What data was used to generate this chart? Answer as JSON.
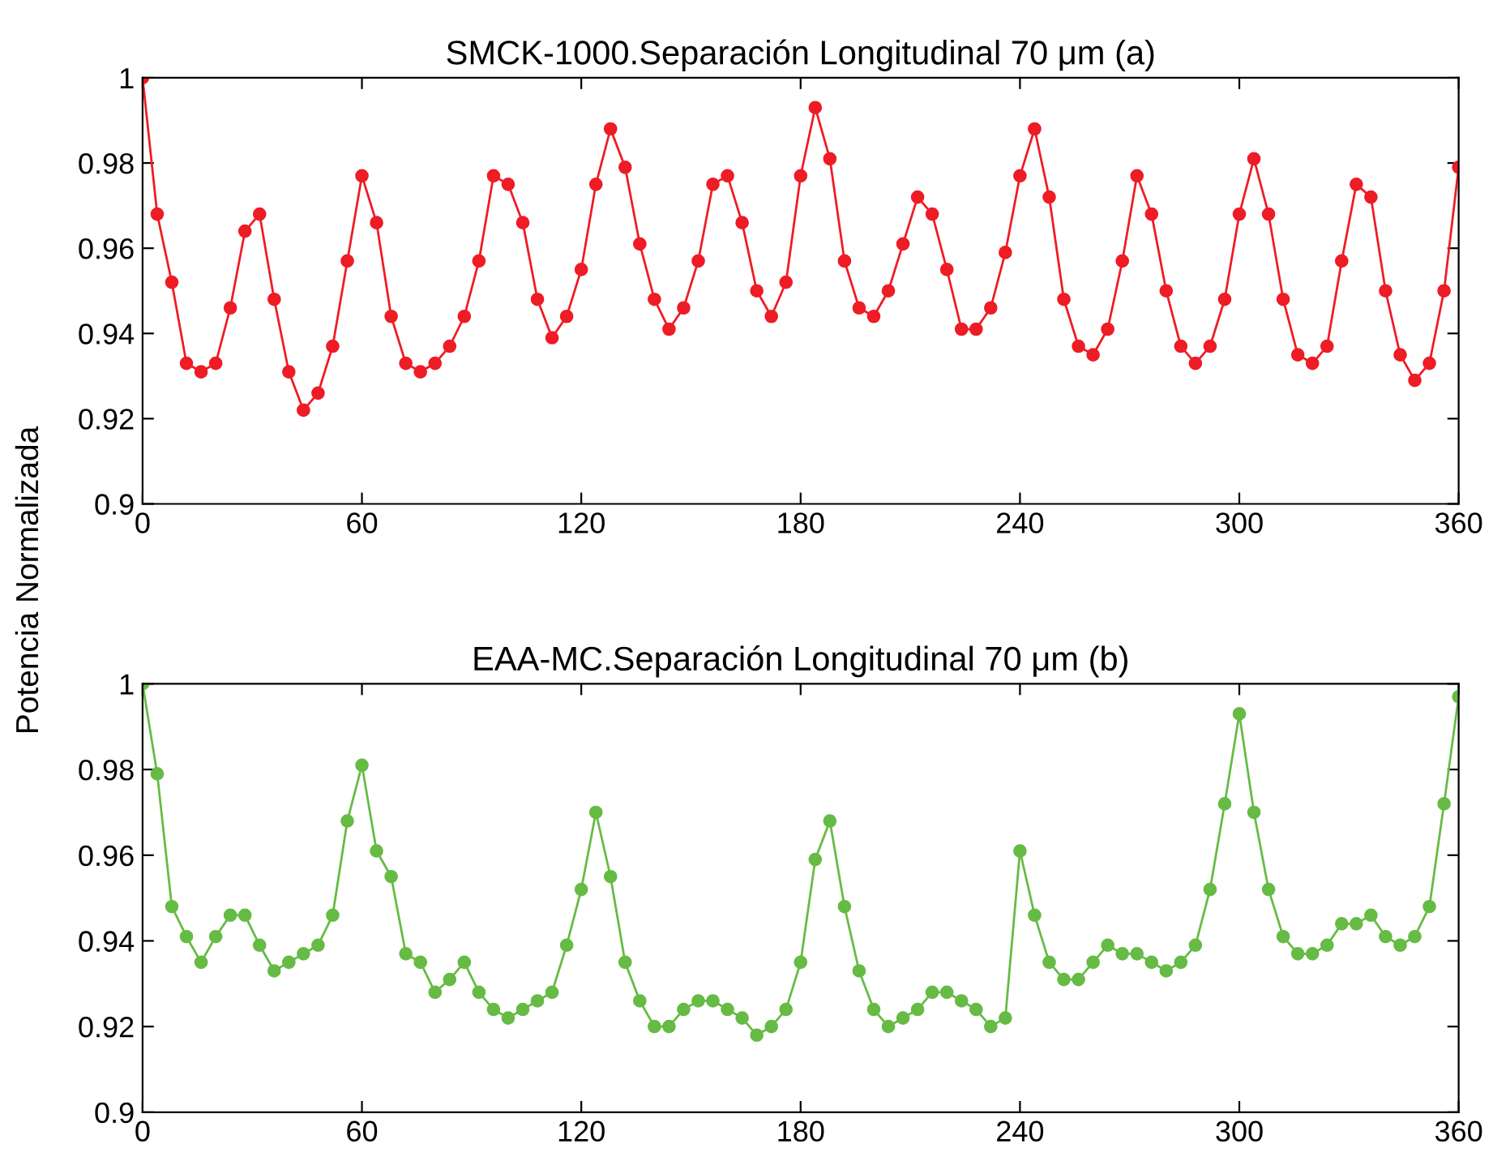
{
  "chart_data": [
    {
      "type": "line",
      "title": "SMCK-1000.Separación Longitudinal 70 μm (a)",
      "ylabel": "Potencia Normalizada",
      "marker": "circle",
      "line_style": "solid",
      "grid": false,
      "legend": false,
      "xlim": [
        0,
        360
      ],
      "xticks": [
        0,
        60,
        120,
        180,
        240,
        300,
        360
      ],
      "ylim": [
        0.9,
        1
      ],
      "yticks": [
        0.9,
        0.92,
        0.94,
        0.96,
        0.98,
        1
      ],
      "series": [
        {
          "color": "#ee1c25",
          "x": [
            0,
            4,
            8,
            12,
            16,
            20,
            24,
            28,
            32,
            36,
            40,
            44,
            48,
            52,
            56,
            60,
            64,
            68,
            72,
            76,
            80,
            84,
            88,
            92,
            96,
            100,
            104,
            108,
            112,
            116,
            120,
            124,
            128,
            132,
            136,
            140,
            144,
            148,
            152,
            156,
            160,
            164,
            168,
            172,
            176,
            180,
            184,
            188,
            192,
            196,
            200,
            204,
            208,
            212,
            216,
            220,
            224,
            228,
            232,
            236,
            240,
            244,
            248,
            252,
            256,
            260,
            264,
            268,
            272,
            276,
            280,
            284,
            288,
            292,
            296,
            300,
            304,
            308,
            312,
            316,
            320,
            324,
            328,
            332,
            336,
            340,
            344,
            348,
            352,
            356,
            360
          ],
          "values": [
            1.0,
            0.968,
            0.952,
            0.933,
            0.931,
            0.933,
            0.946,
            0.964,
            0.968,
            0.948,
            0.931,
            0.922,
            0.926,
            0.937,
            0.957,
            0.977,
            0.966,
            0.944,
            0.933,
            0.931,
            0.933,
            0.937,
            0.944,
            0.957,
            0.977,
            0.975,
            0.966,
            0.948,
            0.939,
            0.944,
            0.955,
            0.975,
            0.988,
            0.979,
            0.961,
            0.948,
            0.941,
            0.946,
            0.957,
            0.975,
            0.977,
            0.966,
            0.95,
            0.944,
            0.952,
            0.977,
            0.993,
            0.981,
            0.957,
            0.946,
            0.944,
            0.95,
            0.961,
            0.972,
            0.968,
            0.955,
            0.941,
            0.941,
            0.946,
            0.959,
            0.977,
            0.988,
            0.972,
            0.948,
            0.937,
            0.935,
            0.941,
            0.957,
            0.977,
            0.968,
            0.95,
            0.937,
            0.933,
            0.937,
            0.948,
            0.968,
            0.981,
            0.968,
            0.948,
            0.935,
            0.933,
            0.937,
            0.957,
            0.975,
            0.972,
            0.95,
            0.935,
            0.929,
            0.933,
            0.95,
            0.979
          ]
        }
      ]
    },
    {
      "type": "line",
      "title": "EAA-MC.Separación Longitudinal 70 μm (b)",
      "marker": "circle",
      "line_style": "solid",
      "grid": false,
      "legend": false,
      "xlim": [
        0,
        360
      ],
      "xticks": [
        0,
        60,
        120,
        180,
        240,
        300,
        360
      ],
      "ylim": [
        0.9,
        1
      ],
      "yticks": [
        0.9,
        0.92,
        0.94,
        0.96,
        0.98,
        1
      ],
      "series": [
        {
          "color": "#66bb44",
          "x": [
            0,
            4,
            8,
            12,
            16,
            20,
            24,
            28,
            32,
            36,
            40,
            44,
            48,
            52,
            56,
            60,
            64,
            68,
            72,
            76,
            80,
            84,
            88,
            92,
            96,
            100,
            104,
            108,
            112,
            116,
            120,
            124,
            128,
            132,
            136,
            140,
            144,
            148,
            152,
            156,
            160,
            164,
            168,
            172,
            176,
            180,
            184,
            188,
            192,
            196,
            200,
            204,
            208,
            212,
            216,
            220,
            224,
            228,
            232,
            236,
            240,
            244,
            248,
            252,
            256,
            260,
            264,
            268,
            272,
            276,
            280,
            284,
            288,
            292,
            296,
            300,
            304,
            308,
            312,
            316,
            320,
            324,
            328,
            332,
            336,
            340,
            344,
            348,
            352,
            356,
            360
          ],
          "values": [
            1.0,
            0.979,
            0.948,
            0.941,
            0.935,
            0.941,
            0.946,
            0.946,
            0.939,
            0.933,
            0.935,
            0.937,
            0.939,
            0.946,
            0.968,
            0.981,
            0.961,
            0.955,
            0.937,
            0.935,
            0.928,
            0.931,
            0.935,
            0.928,
            0.924,
            0.922,
            0.924,
            0.926,
            0.928,
            0.939,
            0.952,
            0.97,
            0.955,
            0.935,
            0.926,
            0.92,
            0.92,
            0.924,
            0.926,
            0.926,
            0.924,
            0.922,
            0.918,
            0.92,
            0.924,
            0.935,
            0.959,
            0.968,
            0.948,
            0.933,
            0.924,
            0.92,
            0.922,
            0.924,
            0.928,
            0.928,
            0.926,
            0.924,
            0.92,
            0.922,
            0.961,
            0.946,
            0.935,
            0.931,
            0.931,
            0.935,
            0.939,
            0.937,
            0.937,
            0.935,
            0.933,
            0.935,
            0.939,
            0.952,
            0.972,
            0.993,
            0.97,
            0.952,
            0.941,
            0.937,
            0.937,
            0.939,
            0.944,
            0.944,
            0.946,
            0.941,
            0.939,
            0.941,
            0.948,
            0.972,
            0.997
          ]
        }
      ]
    }
  ]
}
